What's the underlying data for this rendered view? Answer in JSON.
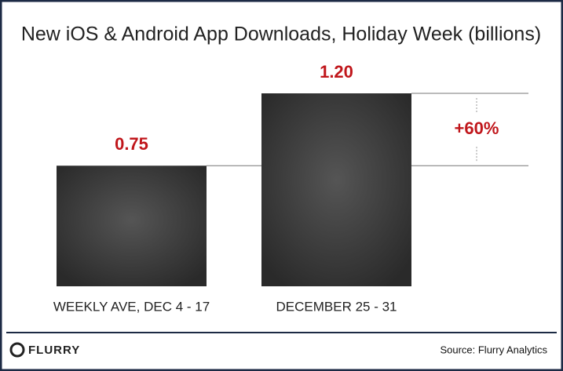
{
  "chart_data": {
    "type": "bar",
    "title": "New iOS & Android App Downloads, Holiday Week (billions)",
    "categories": [
      "WEEKLY AVE, DEC 4 - 17",
      "DECEMBER 25 - 31"
    ],
    "values": [
      0.75,
      1.2
    ],
    "value_labels": [
      "0.75",
      "1.20"
    ],
    "color": "#3a3a3a",
    "annotation": "+60%",
    "source": "Source: Flurry Analytics",
    "logo": "FLURRY"
  }
}
